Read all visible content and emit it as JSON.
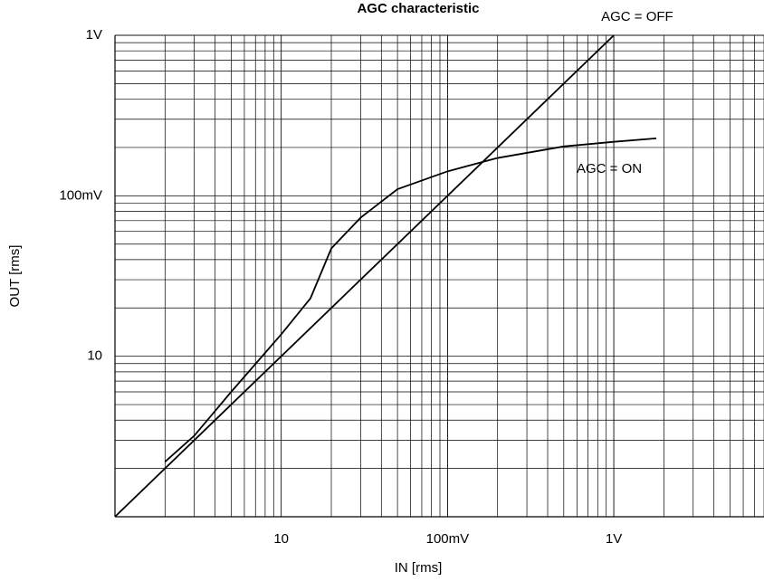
{
  "chart_data": {
    "type": "line",
    "title": "AGC characteristic",
    "x_label": "IN [rms]",
    "y_label": "OUT [rms]",
    "log_x": true,
    "log_y": true,
    "grid": true,
    "minor_grid": true,
    "xlim": [
      1,
      8000
    ],
    "ylim": [
      1,
      1000
    ],
    "xticks": [
      10,
      {
        "value": 100,
        "label": "100mV"
      },
      {
        "value": 1000,
        "label": "1V"
      }
    ],
    "yticks": [
      10,
      {
        "value": 100,
        "label": "100mV"
      },
      {
        "value": 1000,
        "label": "1V"
      }
    ],
    "series": [
      {
        "name": "AGC = OFF",
        "color": "#000000",
        "x": [
          1,
          1000
        ],
        "values": [
          1,
          1000
        ]
      },
      {
        "name": "AGC = ON",
        "color": "#000000",
        "x": [
          2,
          3,
          5,
          10,
          15,
          20,
          30,
          50,
          100,
          200,
          500,
          1000,
          1800
        ],
        "values": [
          2.2,
          3.2,
          6.0,
          13.7,
          23,
          47,
          73,
          110,
          142,
          172,
          203,
          217,
          228
        ]
      }
    ]
  }
}
